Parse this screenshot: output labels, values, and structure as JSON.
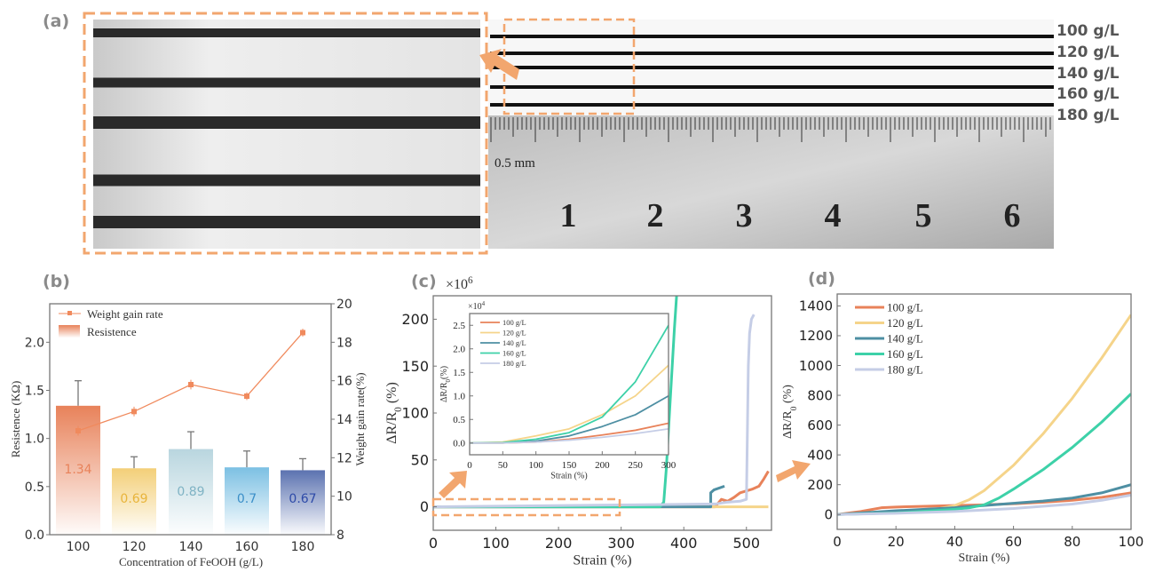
{
  "panel_labels": {
    "a": "(a)",
    "b": "(b)",
    "c": "(c)",
    "d": "(d)"
  },
  "photo": {
    "concentration_labels": [
      "100 g/L",
      "120 g/L",
      "140 g/L",
      "160 g/L",
      "180 g/L"
    ],
    "ruler_numbers": [
      "1",
      "2",
      "3",
      "4",
      "5",
      "6"
    ],
    "ruler_unit": "0.5 mm",
    "accent_color": "#f2a66e"
  },
  "chart_data": [
    {
      "id": "b",
      "type": "bar",
      "categories": [
        "100",
        "120",
        "140",
        "160",
        "180"
      ],
      "xlabel": "Concentration of FeOOH (g/L)",
      "ylabel": "Resistence (KΩ)",
      "ylabel_right": "Weight gain rate(%)",
      "ylim": [
        0,
        2.4
      ],
      "ylim_right": [
        8,
        20
      ],
      "yticks": [
        "0.0",
        "0.5",
        "1.0",
        "1.5",
        "2.0"
      ],
      "yticks_right": [
        "8",
        "10",
        "12",
        "14",
        "16",
        "18",
        "20"
      ],
      "legend": [
        "Weight gain rate",
        "Resistence"
      ],
      "legend_position": "top-left",
      "bars": {
        "name": "Resistence",
        "values": [
          1.34,
          0.69,
          0.89,
          0.7,
          0.67
        ],
        "errors": [
          0.26,
          0.12,
          0.18,
          0.17,
          0.12
        ],
        "labels": [
          "1.34",
          "0.69",
          "0.89",
          "0.7",
          "0.67"
        ],
        "colors": [
          "#e8825a",
          "#f3cf78",
          "#b9d6df",
          "#7cc0e3",
          "#5b72b0"
        ],
        "label_colors": [
          "#e8825a",
          "#e8b43a",
          "#7fb3c4",
          "#3b8fc8",
          "#2d4aa8"
        ]
      },
      "line": {
        "name": "Weight gain rate",
        "values": [
          13.4,
          14.4,
          15.8,
          15.2,
          18.5
        ],
        "errors": [
          0.25,
          0.25,
          0.25,
          0.2,
          0.2
        ],
        "color": "#f08a5d"
      }
    },
    {
      "id": "c",
      "type": "line",
      "multiplier": "×10",
      "multiplier_exp": "6",
      "xlabel": "Strain (%)",
      "ylabel": "ΔR/R",
      "ylabel_sub": "0",
      "ylabel_unit": " (%)",
      "xlim": [
        0,
        540
      ],
      "ylim": [
        -25,
        225
      ],
      "xticks": [
        "0",
        "100",
        "200",
        "300",
        "400",
        "500"
      ],
      "yticks": [
        "0",
        "50",
        "100",
        "150",
        "200"
      ],
      "series": [
        {
          "name": "100 g/L",
          "color": "#e8825a",
          "x": [
            0,
            450,
            460,
            470,
            480,
            490,
            500,
            510,
            520,
            528,
            535
          ],
          "y": [
            0,
            0,
            8,
            6,
            10,
            15,
            17,
            19,
            22,
            30,
            38
          ]
        },
        {
          "name": "120 g/L",
          "color": "#f5d48a",
          "x": [
            0,
            535
          ],
          "y": [
            0,
            0
          ]
        },
        {
          "name": "140 g/L",
          "color": "#4e8fa3",
          "x": [
            0,
            443,
            443,
            448,
            465
          ],
          "y": [
            0,
            0,
            15,
            18,
            22
          ]
        },
        {
          "name": "160 g/L",
          "color": "#3dd1a8",
          "x": [
            0,
            362,
            368,
            372,
            378,
            385,
            390
          ],
          "y": [
            0,
            0,
            5,
            40,
            110,
            190,
            240
          ]
        },
        {
          "name": "180 g/L",
          "color": "#c5cde6",
          "x": [
            0,
            450,
            470,
            490,
            500,
            503,
            505,
            508,
            512
          ],
          "y": [
            0,
            3,
            5,
            6,
            8,
            150,
            185,
            200,
            205
          ]
        }
      ],
      "inset": {
        "multiplier": "×10",
        "multiplier_exp": "4",
        "xlabel": "Strain (%)",
        "ylabel": "ΔR/R",
        "ylabel_sub": "0",
        "ylabel_unit": "(%)",
        "xlim": [
          0,
          300
        ],
        "ylim": [
          -0.25,
          2.75
        ],
        "xticks": [
          "0",
          "50",
          "100",
          "150",
          "200",
          "250",
          "300"
        ],
        "yticks": [
          "0.0",
          "0.5",
          "1.0",
          "1.5",
          "2.0",
          "2.5"
        ],
        "legend_position": "top-left",
        "series": [
          {
            "name": "100 g/L",
            "color": "#e8825a",
            "x": [
              0,
              50,
              100,
              150,
              200,
              250,
              300
            ],
            "y": [
              0,
              0,
              0.02,
              0.08,
              0.17,
              0.27,
              0.42
            ]
          },
          {
            "name": "120 g/L",
            "color": "#f5d48a",
            "x": [
              0,
              50,
              100,
              150,
              200,
              250,
              300
            ],
            "y": [
              0,
              0.02,
              0.15,
              0.3,
              0.6,
              1.0,
              1.65
            ]
          },
          {
            "name": "140 g/L",
            "color": "#4e8fa3",
            "x": [
              0,
              50,
              100,
              150,
              200,
              250,
              300
            ],
            "y": [
              0,
              0,
              0.04,
              0.15,
              0.35,
              0.6,
              1.0
            ]
          },
          {
            "name": "160 g/L",
            "color": "#3dd1a8",
            "x": [
              0,
              50,
              100,
              150,
              200,
              250,
              300
            ],
            "y": [
              0,
              0.01,
              0.08,
              0.22,
              0.55,
              1.3,
              2.5
            ]
          },
          {
            "name": "180 g/L",
            "color": "#c5cde6",
            "x": [
              0,
              50,
              100,
              150,
              200,
              250,
              300
            ],
            "y": [
              0,
              0,
              0.02,
              0.06,
              0.12,
              0.2,
              0.3
            ]
          }
        ]
      }
    },
    {
      "id": "d",
      "type": "line",
      "xlabel": "Strain (%)",
      "ylabel": "ΔR/R",
      "ylabel_sub": "0",
      "ylabel_unit": " (%)",
      "xlim": [
        0,
        100
      ],
      "ylim": [
        -100,
        1480
      ],
      "xticks": [
        "0",
        "20",
        "40",
        "60",
        "80",
        "100"
      ],
      "yticks": [
        "0",
        "200",
        "400",
        "600",
        "800",
        "1000",
        "1200",
        "1400"
      ],
      "legend_position": "top-left",
      "series": [
        {
          "name": "100 g/L",
          "color": "#e8825a",
          "x": [
            0,
            8,
            15,
            20,
            30,
            40,
            50,
            60,
            70,
            80,
            90,
            100
          ],
          "y": [
            0,
            20,
            45,
            50,
            55,
            60,
            65,
            72,
            82,
            95,
            115,
            145
          ]
        },
        {
          "name": "120 g/L",
          "color": "#f5d48a",
          "x": [
            0,
            20,
            35,
            40,
            45,
            50,
            60,
            70,
            80,
            90,
            100
          ],
          "y": [
            0,
            20,
            40,
            60,
            100,
            160,
            330,
            540,
            780,
            1050,
            1340
          ]
        },
        {
          "name": "140 g/L",
          "color": "#4e8fa3",
          "x": [
            0,
            20,
            40,
            50,
            60,
            70,
            80,
            90,
            100
          ],
          "y": [
            0,
            25,
            45,
            60,
            75,
            90,
            110,
            145,
            200
          ]
        },
        {
          "name": "160 g/L",
          "color": "#3dd1a8",
          "x": [
            0,
            20,
            40,
            45,
            50,
            55,
            60,
            70,
            80,
            90,
            100
          ],
          "y": [
            0,
            10,
            35,
            45,
            65,
            110,
            170,
            300,
            450,
            620,
            810
          ]
        },
        {
          "name": "180 g/L",
          "color": "#c5cde6",
          "x": [
            0,
            20,
            40,
            60,
            80,
            90,
            100
          ],
          "y": [
            0,
            8,
            20,
            40,
            70,
            95,
            130
          ]
        }
      ]
    }
  ]
}
